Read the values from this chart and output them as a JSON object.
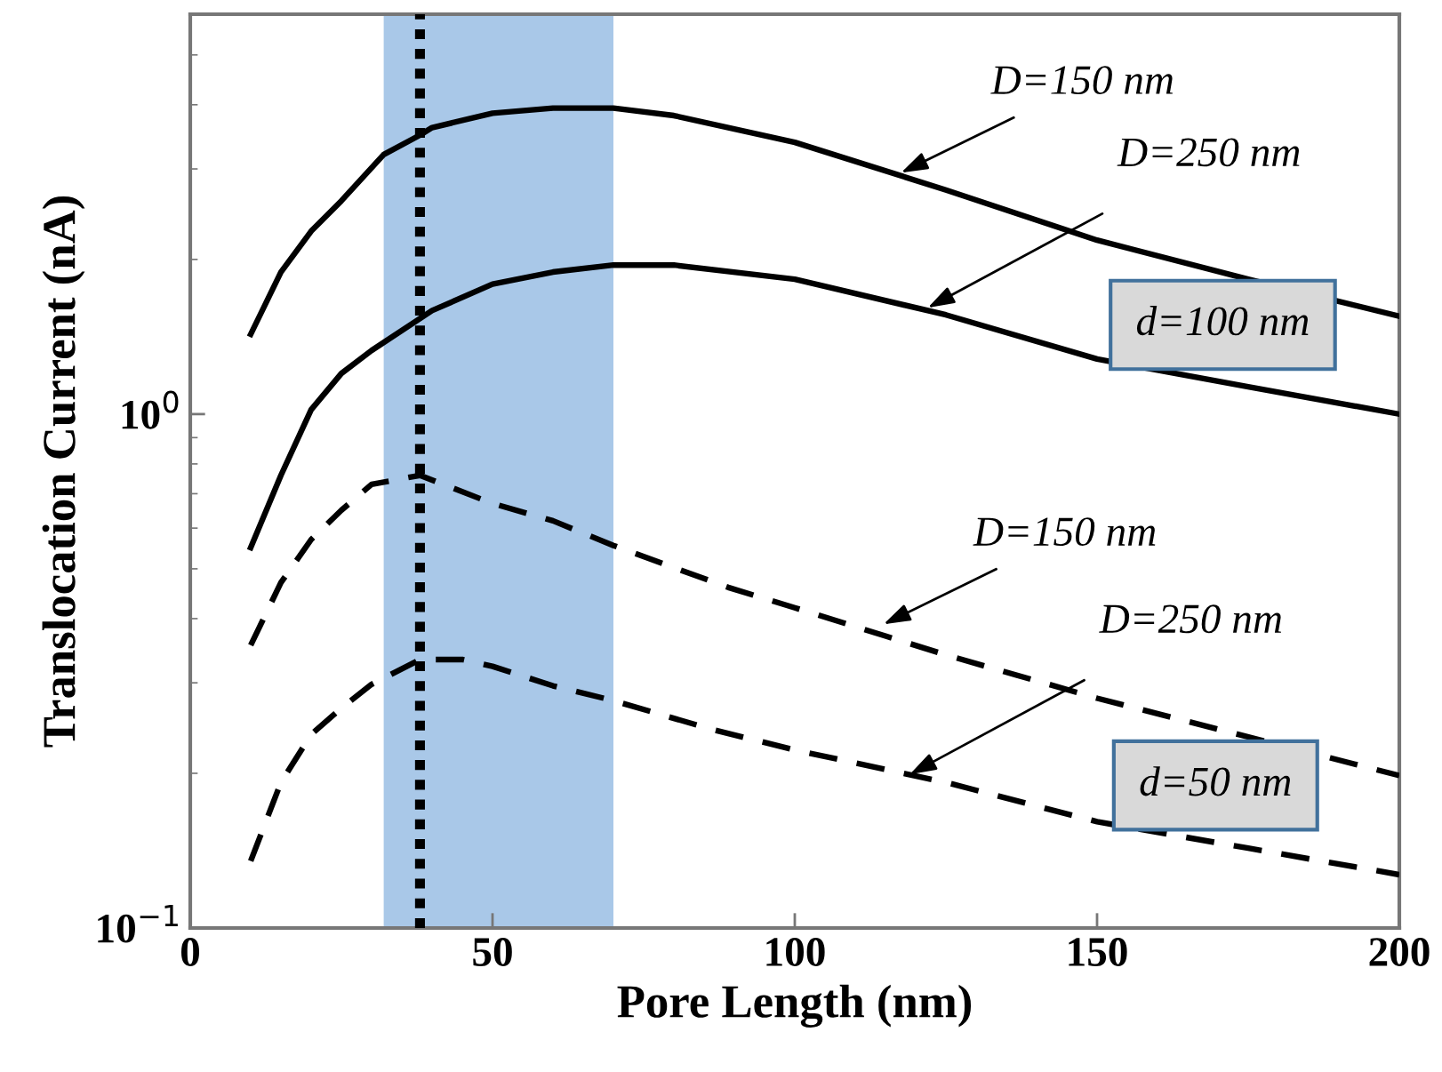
{
  "chart_data": {
    "type": "line",
    "xlabel": "Pore Length (nm)",
    "ylabel": "Translocation Current (nA)",
    "log": "y",
    "xlim": [
      0,
      200
    ],
    "xticks": [
      0,
      50,
      100,
      150,
      200
    ],
    "ylim": [
      0.1,
      6
    ],
    "yticks": [
      {
        "value": 0.1,
        "label": "10$^{−1}$"
      },
      {
        "value": 1,
        "label": "10$^{0}$"
      }
    ],
    "grid": false,
    "series": [
      {
        "color": "#000000",
        "line_style": "solid",
        "x": [
          10,
          15,
          20,
          25,
          32,
          38,
          40,
          50,
          60,
          70,
          80,
          100,
          125,
          150,
          175,
          200
        ],
        "values": [
          1.43,
          1.89,
          2.27,
          2.6,
          3.2,
          3.49,
          3.61,
          3.85,
          3.94,
          3.94,
          3.81,
          3.38,
          2.73,
          2.18,
          1.83,
          1.55
        ]
      },
      {
        "color": "#000000",
        "line_style": "solid",
        "x": [
          10,
          15,
          20,
          25,
          30,
          40,
          50,
          60,
          70,
          80,
          100,
          125,
          150,
          175,
          200
        ],
        "values": [
          0.55,
          0.76,
          1.02,
          1.2,
          1.33,
          1.59,
          1.79,
          1.89,
          1.95,
          1.95,
          1.83,
          1.56,
          1.28,
          1.13,
          1.0
        ]
      },
      {
        "color": "#000000",
        "line_style": "dashed",
        "x": [
          10,
          15,
          20,
          25,
          30,
          38,
          50,
          60,
          70,
          89,
          100,
          115,
          125,
          150,
          200
        ],
        "values": [
          0.355,
          0.47,
          0.57,
          0.65,
          0.73,
          0.76,
          0.67,
          0.62,
          0.555,
          0.46,
          0.42,
          0.37,
          0.34,
          0.28,
          0.198
        ]
      },
      {
        "color": "#000000",
        "line_style": "dashed",
        "x": [
          10,
          15,
          20,
          25,
          30,
          38,
          45,
          50,
          60,
          70,
          86,
          100,
          125,
          150,
          175,
          200
        ],
        "values": [
          0.135,
          0.192,
          0.238,
          0.268,
          0.298,
          0.333,
          0.333,
          0.323,
          0.296,
          0.277,
          0.244,
          0.222,
          0.192,
          0.161,
          0.143,
          0.127
        ]
      }
    ],
    "bands": [
      {
        "axis": "x",
        "from": 32,
        "to": 70,
        "color": "#a9c8e8"
      }
    ],
    "ref_lines": [
      {
        "axis": "x",
        "value": 38,
        "color": "#000000",
        "line_style": "dotted"
      }
    ],
    "annotations": [
      {
        "text": "D=150 nm",
        "x": 117.6,
        "y": 2.95
      },
      {
        "text": "D=250 nm",
        "x": 122,
        "y": 1.61
      },
      {
        "text": "D=150 nm",
        "x": 114.7,
        "y": 0.39
      },
      {
        "text": "D=250 nm",
        "x": 119,
        "y": 0.199
      },
      "d=100 nm",
      "d=50 nm"
    ]
  }
}
